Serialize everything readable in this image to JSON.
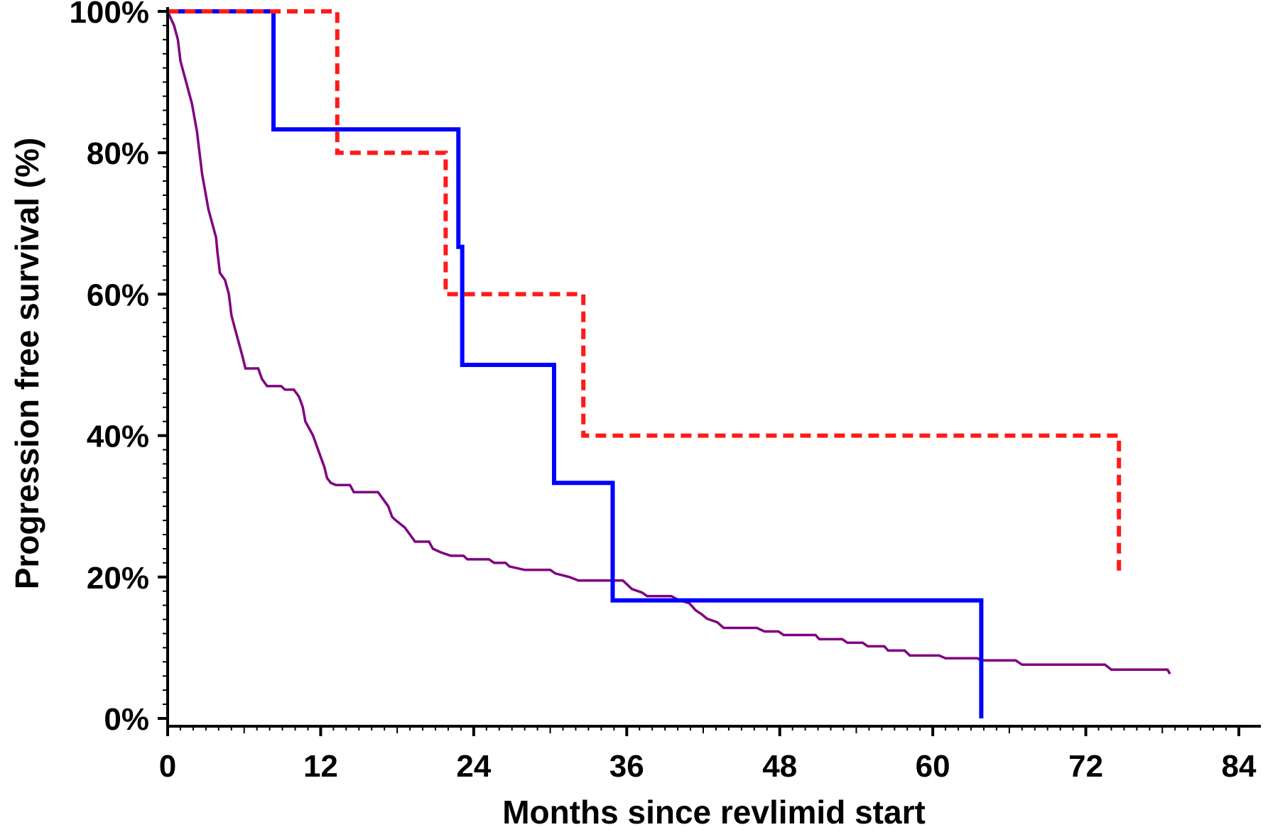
{
  "chart_data": {
    "type": "line",
    "step": true,
    "title": "",
    "xlabel": "Months since revlimid start",
    "ylabel": "Progression free survival (%)",
    "xlim": [
      0,
      84
    ],
    "ylim": [
      0,
      100
    ],
    "x_ticks": [
      0,
      12,
      24,
      36,
      48,
      60,
      72,
      84
    ],
    "y_ticks": [
      0,
      20,
      40,
      60,
      80,
      100
    ],
    "y_tick_suffix": "%",
    "grid": false,
    "legend": "none",
    "series": [
      {
        "color": "#0000ff",
        "line_style": "solid",
        "points": [
          [
            0,
            100
          ],
          [
            8.3,
            100
          ],
          [
            8.3,
            83.3
          ],
          [
            22.8,
            83.3
          ],
          [
            22.8,
            66.7
          ],
          [
            23.1,
            66.7
          ],
          [
            23.1,
            50
          ],
          [
            30.3,
            50
          ],
          [
            30.3,
            33.3
          ],
          [
            34.9,
            33.3
          ],
          [
            34.9,
            16.7
          ],
          [
            63.8,
            16.7
          ],
          [
            63.8,
            0
          ]
        ]
      },
      {
        "color": "#ff1a1a",
        "line_style": "dashed",
        "points": [
          [
            0,
            100
          ],
          [
            13.3,
            100
          ],
          [
            13.3,
            80
          ],
          [
            21.8,
            80
          ],
          [
            21.8,
            60
          ],
          [
            32.6,
            60
          ],
          [
            32.6,
            40
          ],
          [
            74.6,
            40
          ],
          [
            74.6,
            20
          ]
        ]
      },
      {
        "color": "#800080",
        "line_style": "solid",
        "points": [
          [
            0,
            100
          ],
          [
            0.5,
            98
          ],
          [
            0.8,
            96
          ],
          [
            1,
            93
          ],
          [
            1.3,
            91
          ],
          [
            1.6,
            89
          ],
          [
            1.9,
            87
          ],
          [
            2.1,
            85
          ],
          [
            2.3,
            83
          ],
          [
            2.5,
            80
          ],
          [
            2.7,
            77
          ],
          [
            2.9,
            75
          ],
          [
            3.2,
            72
          ],
          [
            3.5,
            70
          ],
          [
            3.8,
            68
          ],
          [
            3.9,
            66
          ],
          [
            4.1,
            63
          ],
          [
            4.5,
            62
          ],
          [
            4.8,
            60
          ],
          [
            5,
            57
          ],
          [
            5.3,
            55
          ],
          [
            5.6,
            53
          ],
          [
            5.9,
            51
          ],
          [
            6.1,
            49.5
          ],
          [
            7.1,
            49.5
          ],
          [
            7.4,
            48
          ],
          [
            7.8,
            47
          ],
          [
            8.9,
            47
          ],
          [
            9.2,
            46.5
          ],
          [
            9.9,
            46.5
          ],
          [
            10.3,
            45.5
          ],
          [
            10.6,
            44
          ],
          [
            10.8,
            42
          ],
          [
            11.1,
            41
          ],
          [
            11.4,
            40
          ],
          [
            11.7,
            38.5
          ],
          [
            12,
            37
          ],
          [
            12.3,
            35.5
          ],
          [
            12.5,
            34
          ],
          [
            12.8,
            33.3
          ],
          [
            13.2,
            33
          ],
          [
            14.3,
            33
          ],
          [
            14.6,
            32
          ],
          [
            16.5,
            32
          ],
          [
            16.9,
            31
          ],
          [
            17.3,
            30
          ],
          [
            17.6,
            28.5
          ],
          [
            17.9,
            28
          ],
          [
            18.6,
            27
          ],
          [
            19,
            26
          ],
          [
            19.4,
            25
          ],
          [
            20.5,
            25
          ],
          [
            20.8,
            24
          ],
          [
            21.4,
            23.5
          ],
          [
            22.2,
            23
          ],
          [
            23.2,
            23
          ],
          [
            23.5,
            22.5
          ],
          [
            25.2,
            22.5
          ],
          [
            25.6,
            22
          ],
          [
            26.5,
            22
          ],
          [
            26.8,
            21.5
          ],
          [
            28,
            21
          ],
          [
            30,
            21
          ],
          [
            30.4,
            20.5
          ],
          [
            31.5,
            20
          ],
          [
            32.2,
            19.5
          ],
          [
            34.5,
            19.5
          ],
          [
            35.7,
            19.5
          ],
          [
            36,
            19
          ],
          [
            36.4,
            18.3
          ],
          [
            37.2,
            17.8
          ],
          [
            37.6,
            17.3
          ],
          [
            39.5,
            17.3
          ],
          [
            40,
            16.8
          ],
          [
            40.9,
            16.3
          ],
          [
            41.4,
            15.3
          ],
          [
            41.9,
            14.7
          ],
          [
            42.3,
            14.1
          ],
          [
            43.1,
            13.6
          ],
          [
            43.6,
            12.8
          ],
          [
            46.2,
            12.8
          ],
          [
            46.8,
            12.3
          ],
          [
            47.9,
            12.3
          ],
          [
            48.3,
            11.8
          ],
          [
            50.8,
            11.8
          ],
          [
            51.1,
            11.2
          ],
          [
            52.9,
            11.2
          ],
          [
            53.3,
            10.7
          ],
          [
            54.5,
            10.7
          ],
          [
            54.9,
            10.2
          ],
          [
            56.2,
            10.2
          ],
          [
            56.5,
            9.6
          ],
          [
            57.8,
            9.6
          ],
          [
            58.2,
            8.9
          ],
          [
            60.5,
            8.9
          ],
          [
            61,
            8.5
          ],
          [
            63.5,
            8.5
          ],
          [
            63.8,
            8.2
          ],
          [
            66.5,
            8.2
          ],
          [
            67,
            7.6
          ],
          [
            73.5,
            7.6
          ],
          [
            74,
            6.9
          ],
          [
            78.4,
            6.9
          ],
          [
            78.6,
            6.3
          ]
        ]
      }
    ]
  }
}
